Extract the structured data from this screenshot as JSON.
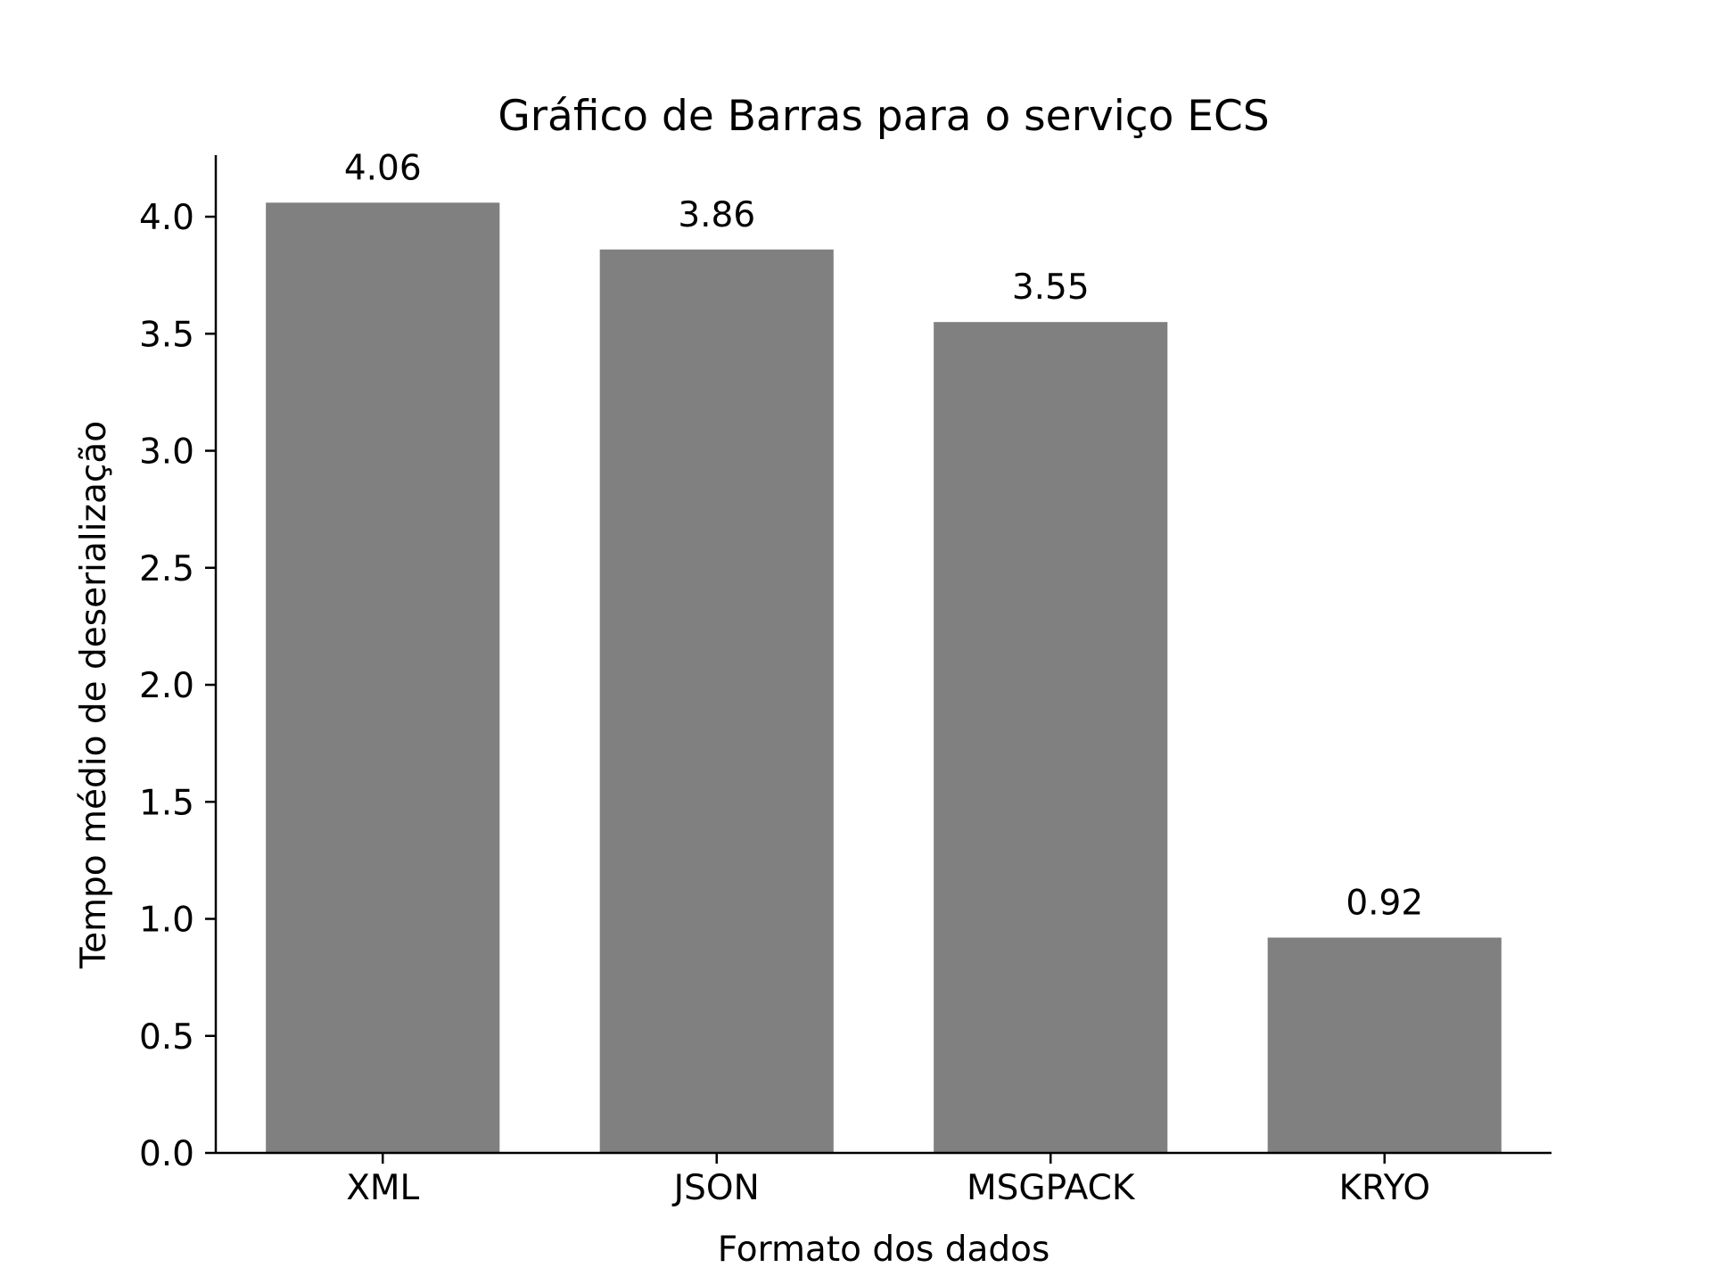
{
  "chart_data": {
    "type": "bar",
    "title": "Gráfico de Barras para o serviço ECS",
    "xlabel": "Formato dos dados",
    "ylabel": "Tempo médio de deserialização",
    "categories": [
      "XML",
      "JSON",
      "MSGPACK",
      "KRYO"
    ],
    "values": [
      4.06,
      3.86,
      3.55,
      0.92
    ],
    "data_labels": [
      "4.06",
      "3.86",
      "3.55",
      "0.92"
    ],
    "ylim": [
      0,
      4.263
    ],
    "yticks": [
      0.0,
      0.5,
      1.0,
      1.5,
      2.0,
      2.5,
      3.0,
      3.5,
      4.0
    ],
    "ytick_labels": [
      "0.0",
      "0.5",
      "1.0",
      "1.5",
      "2.0",
      "2.5",
      "3.0",
      "3.5",
      "4.0"
    ],
    "bar_color": "#808080",
    "grid": false,
    "legend": "none"
  }
}
